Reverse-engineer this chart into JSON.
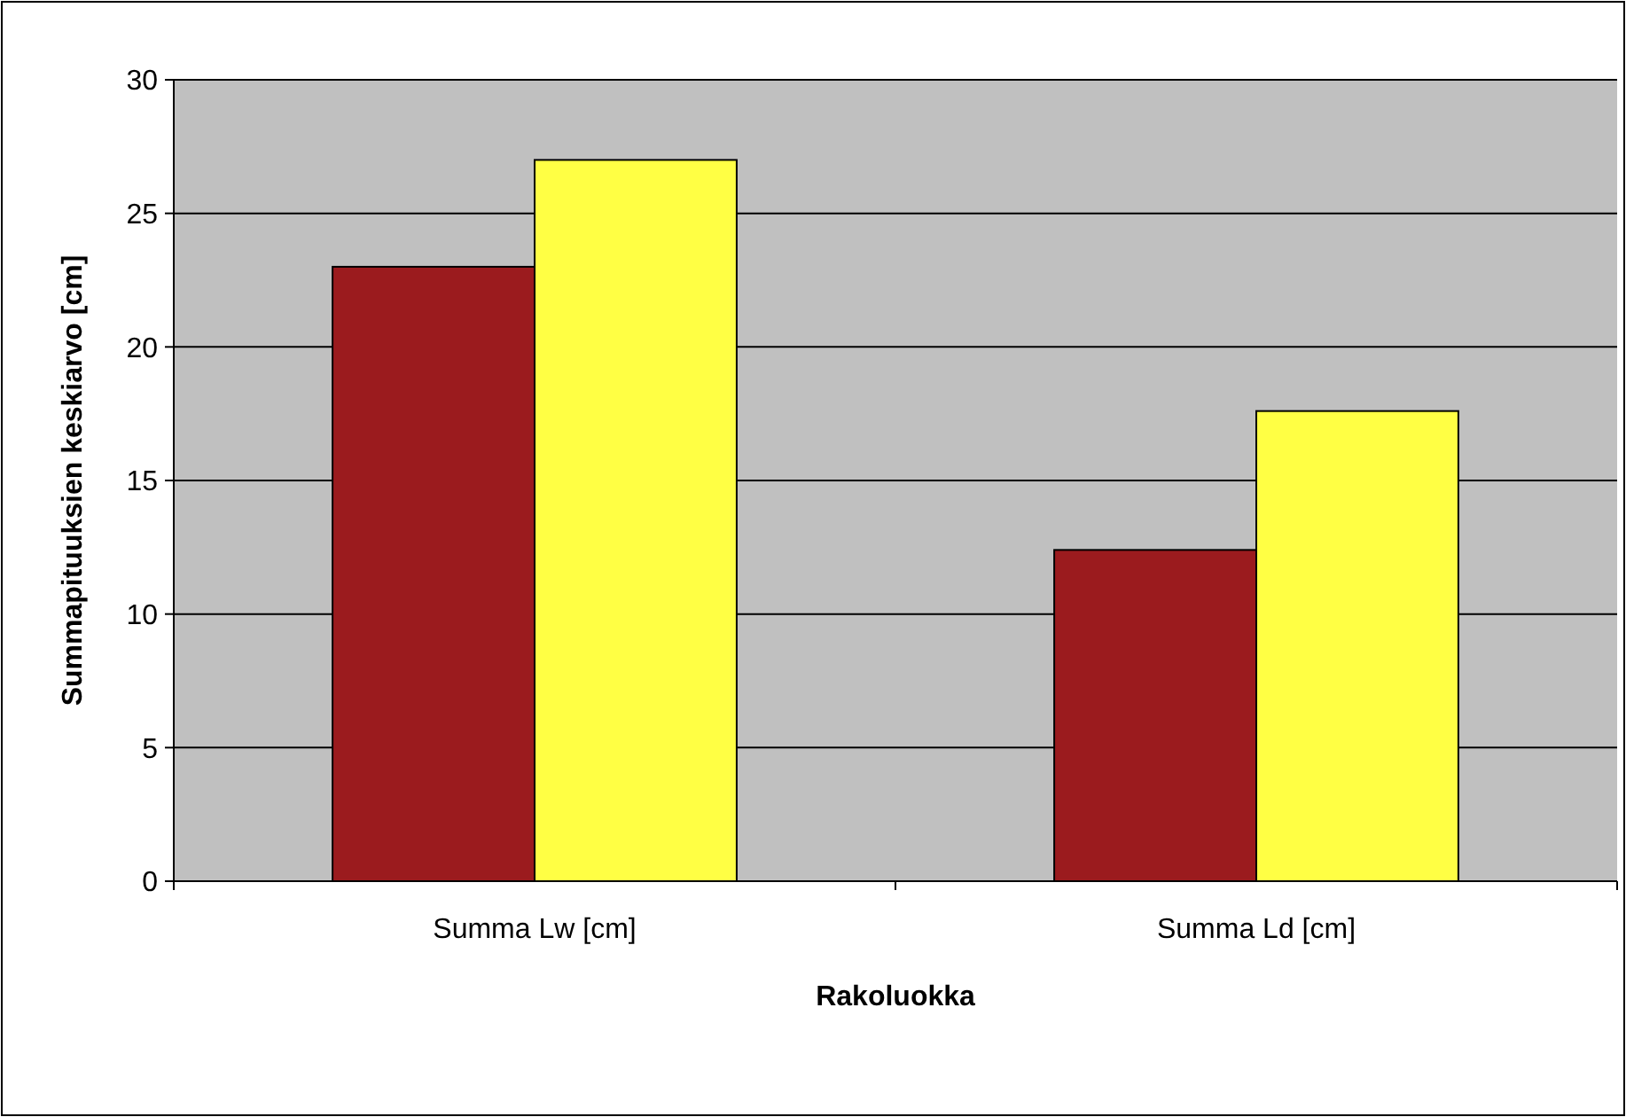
{
  "chart_data": {
    "type": "bar",
    "xlabel": "Rakoluokka",
    "ylabel": "Summapituuksien keskiarvo [cm]",
    "categories": [
      "Summa Lw [cm]",
      "Summa Ld [cm]"
    ],
    "series": [
      {
        "color": "#9b1b1e",
        "values": [
          23.0,
          12.4
        ]
      },
      {
        "color": "#ffff44",
        "values": [
          27.0,
          17.6
        ]
      }
    ],
    "ylim": [
      0,
      30
    ],
    "yticks": [
      0,
      5,
      10,
      15,
      20,
      25,
      30
    ],
    "grid": "y"
  }
}
